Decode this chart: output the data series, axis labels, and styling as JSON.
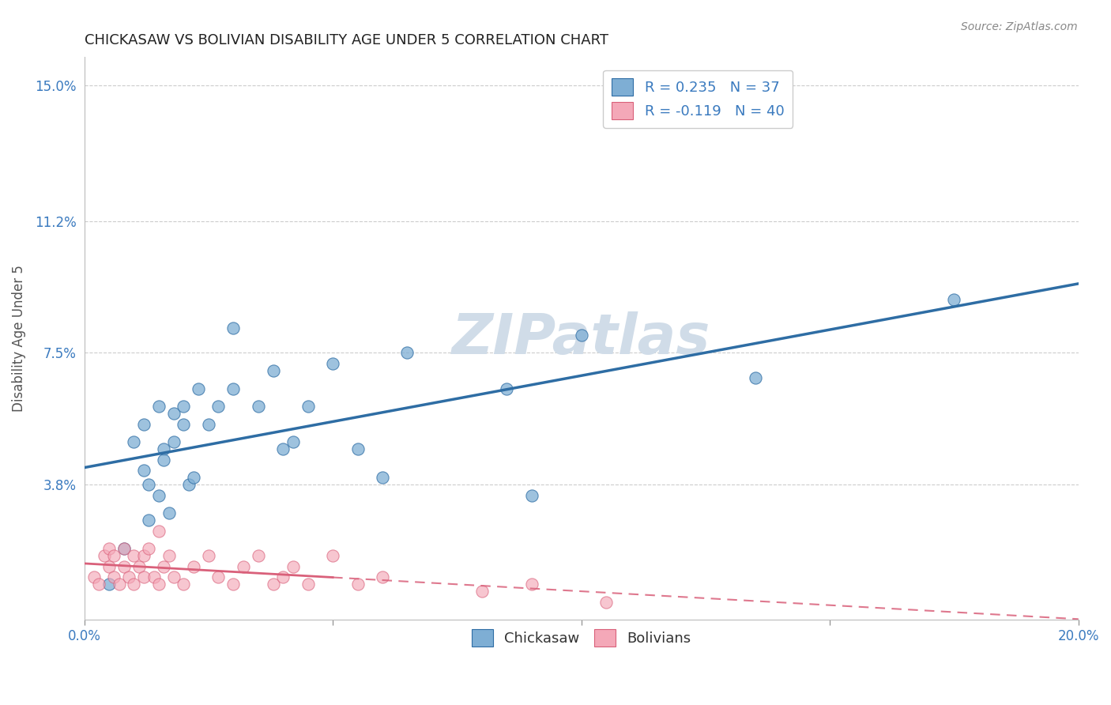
{
  "title": "CHICKASAW VS BOLIVIAN DISABILITY AGE UNDER 5 CORRELATION CHART",
  "source": "Source: ZipAtlas.com",
  "ylabel": "Disability Age Under 5",
  "ytick_values": [
    0.0,
    0.038,
    0.075,
    0.112,
    0.15
  ],
  "xlim": [
    0.0,
    0.2
  ],
  "ylim": [
    0.0,
    0.158
  ],
  "legend_r1": "R = 0.235",
  "legend_n1": "N = 37",
  "legend_r2": "R = -0.119",
  "legend_n2": "N = 40",
  "color_blue": "#7eaed4",
  "color_blue_line": "#2e6da4",
  "color_pink": "#f4a8b8",
  "color_pink_line": "#d9607a",
  "color_axis_labels": "#3a7abf",
  "watermark_color": "#d0dce8",
  "chickasaw_x": [
    0.005,
    0.008,
    0.01,
    0.012,
    0.012,
    0.013,
    0.013,
    0.015,
    0.015,
    0.016,
    0.016,
    0.017,
    0.018,
    0.018,
    0.02,
    0.02,
    0.021,
    0.022,
    0.023,
    0.025,
    0.027,
    0.03,
    0.03,
    0.035,
    0.038,
    0.04,
    0.042,
    0.045,
    0.05,
    0.055,
    0.06,
    0.065,
    0.085,
    0.09,
    0.1,
    0.135,
    0.175
  ],
  "chickasaw_y": [
    0.01,
    0.02,
    0.05,
    0.042,
    0.055,
    0.028,
    0.038,
    0.06,
    0.035,
    0.048,
    0.045,
    0.03,
    0.05,
    0.058,
    0.055,
    0.06,
    0.038,
    0.04,
    0.065,
    0.055,
    0.06,
    0.082,
    0.065,
    0.06,
    0.07,
    0.048,
    0.05,
    0.06,
    0.072,
    0.048,
    0.04,
    0.075,
    0.065,
    0.035,
    0.08,
    0.068,
    0.09
  ],
  "bolivian_x": [
    0.002,
    0.003,
    0.004,
    0.005,
    0.005,
    0.006,
    0.006,
    0.007,
    0.008,
    0.008,
    0.009,
    0.01,
    0.01,
    0.011,
    0.012,
    0.012,
    0.013,
    0.014,
    0.015,
    0.015,
    0.016,
    0.017,
    0.018,
    0.02,
    0.022,
    0.025,
    0.027,
    0.03,
    0.032,
    0.035,
    0.038,
    0.04,
    0.042,
    0.045,
    0.05,
    0.055,
    0.06,
    0.08,
    0.09,
    0.105
  ],
  "bolivian_y": [
    0.012,
    0.01,
    0.018,
    0.015,
    0.02,
    0.012,
    0.018,
    0.01,
    0.015,
    0.02,
    0.012,
    0.018,
    0.01,
    0.015,
    0.012,
    0.018,
    0.02,
    0.012,
    0.01,
    0.025,
    0.015,
    0.018,
    0.012,
    0.01,
    0.015,
    0.018,
    0.012,
    0.01,
    0.015,
    0.018,
    0.01,
    0.012,
    0.015,
    0.01,
    0.018,
    0.01,
    0.012,
    0.008,
    0.01,
    0.005
  ]
}
